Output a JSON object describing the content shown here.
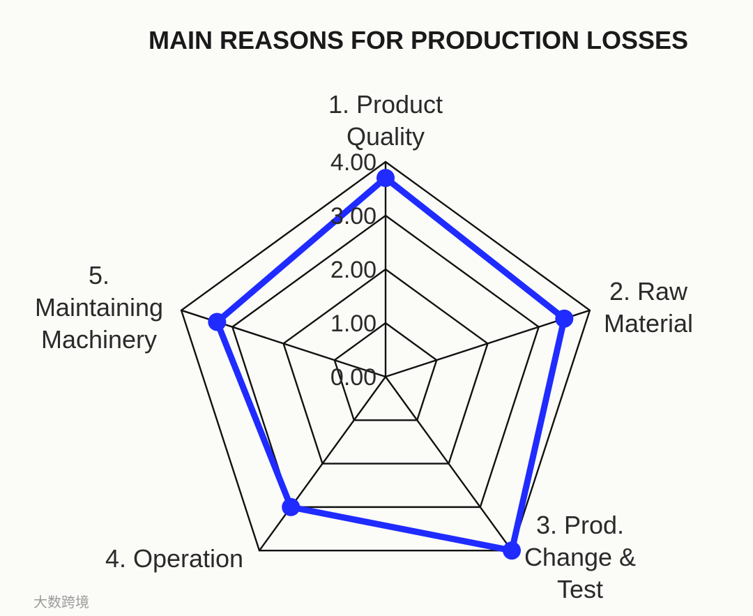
{
  "chart_data": {
    "type": "radar",
    "title": "MAIN REASONS FOR PRODUCTION LOSSES",
    "categories": [
      [
        "1. Product",
        "Quality"
      ],
      [
        "2. Raw",
        "Material"
      ],
      [
        "3. Prod.",
        "Change &",
        "Test"
      ],
      [
        "4. Operation"
      ],
      [
        "5.",
        "Maintaining",
        "Machinery"
      ]
    ],
    "series": [
      {
        "values": [
          3.7,
          3.5,
          4.0,
          3.0,
          3.3
        ],
        "color": "#1f2bff"
      }
    ],
    "rlim": [
      0,
      4
    ],
    "ticks": [
      0,
      1,
      2,
      3,
      4
    ],
    "tick_labels": [
      "0.00",
      "1.00",
      "2.00",
      "3.00",
      "4.00"
    ],
    "grid": true,
    "legend": "none"
  },
  "watermark": "大数跨境"
}
